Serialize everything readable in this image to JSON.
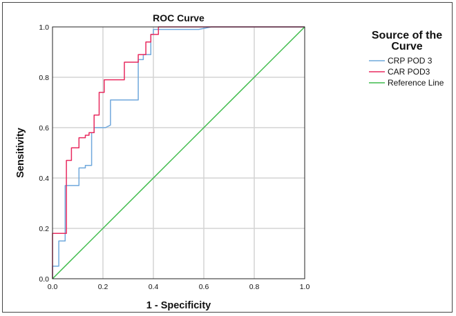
{
  "chart_data": {
    "type": "line",
    "title": "ROC Curve",
    "xlabel": "1 - Specificity",
    "ylabel": "Sensitivity",
    "xlim": [
      0,
      1
    ],
    "ylim": [
      0,
      1
    ],
    "xticks": [
      "0.0",
      "0.2",
      "0.4",
      "0.6",
      "0.8",
      "1.0"
    ],
    "yticks": [
      "0.0",
      "0.2",
      "0.4",
      "0.6",
      "0.8",
      "1.0"
    ],
    "grid": true,
    "legend": {
      "title": "Source of the Curve",
      "title_lines": [
        "Source of the",
        "Curve"
      ],
      "placement": "right"
    },
    "series": [
      {
        "name": "CRP POD 3",
        "color": "#6fa8dc",
        "points": [
          [
            0,
            0
          ],
          [
            0,
            0.05
          ],
          [
            0.025,
            0.05
          ],
          [
            0.025,
            0.15
          ],
          [
            0.05,
            0.15
          ],
          [
            0.05,
            0.37
          ],
          [
            0.105,
            0.37
          ],
          [
            0.105,
            0.44
          ],
          [
            0.13,
            0.44
          ],
          [
            0.13,
            0.45
          ],
          [
            0.155,
            0.45
          ],
          [
            0.155,
            0.58
          ],
          [
            0.165,
            0.58
          ],
          [
            0.165,
            0.6
          ],
          [
            0.21,
            0.6
          ],
          [
            0.23,
            0.61
          ],
          [
            0.23,
            0.71
          ],
          [
            0.34,
            0.71
          ],
          [
            0.34,
            0.87
          ],
          [
            0.36,
            0.87
          ],
          [
            0.36,
            0.89
          ],
          [
            0.39,
            0.89
          ],
          [
            0.39,
            0.97
          ],
          [
            0.4,
            0.97
          ],
          [
            0.4,
            0.99
          ],
          [
            0.58,
            0.99
          ],
          [
            0.63,
            1.0
          ],
          [
            1,
            1
          ]
        ]
      },
      {
        "name": "CAR POD3",
        "color": "#e8295e",
        "points": [
          [
            0,
            0
          ],
          [
            0,
            0.18
          ],
          [
            0.055,
            0.18
          ],
          [
            0.055,
            0.47
          ],
          [
            0.075,
            0.47
          ],
          [
            0.075,
            0.52
          ],
          [
            0.105,
            0.52
          ],
          [
            0.105,
            0.56
          ],
          [
            0.13,
            0.56
          ],
          [
            0.13,
            0.57
          ],
          [
            0.145,
            0.57
          ],
          [
            0.145,
            0.58
          ],
          [
            0.165,
            0.58
          ],
          [
            0.165,
            0.65
          ],
          [
            0.185,
            0.65
          ],
          [
            0.185,
            0.74
          ],
          [
            0.205,
            0.74
          ],
          [
            0.205,
            0.79
          ],
          [
            0.285,
            0.79
          ],
          [
            0.285,
            0.86
          ],
          [
            0.34,
            0.86
          ],
          [
            0.34,
            0.89
          ],
          [
            0.37,
            0.89
          ],
          [
            0.37,
            0.94
          ],
          [
            0.39,
            0.94
          ],
          [
            0.39,
            0.97
          ],
          [
            0.42,
            0.97
          ],
          [
            0.42,
            1.0
          ],
          [
            1,
            1
          ]
        ]
      },
      {
        "name": "Reference Line",
        "color": "#3dbb4a",
        "points": [
          [
            0,
            0
          ],
          [
            1,
            1
          ]
        ]
      }
    ]
  }
}
